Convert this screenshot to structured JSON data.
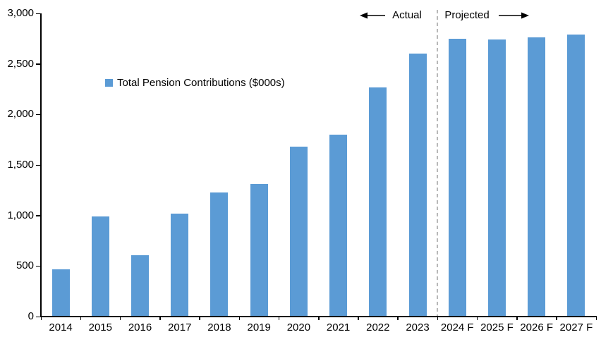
{
  "chart_data": {
    "type": "bar",
    "title": "",
    "legend_label": "Total Pension Contributions ($000s)",
    "categories": [
      "2014",
      "2015",
      "2016",
      "2017",
      "2018",
      "2019",
      "2020",
      "2021",
      "2022",
      "2023",
      "2024 F",
      "2025 F",
      "2026 F",
      "2027 F"
    ],
    "values": [
      470,
      990,
      610,
      1020,
      1230,
      1310,
      1680,
      1800,
      2265,
      2600,
      2750,
      2740,
      2760,
      2790
    ],
    "ylim": [
      0,
      3000
    ],
    "ytick_interval": 500,
    "ytick_labels": [
      "0",
      "500",
      "1,000",
      "1,500",
      "2,000",
      "2,500",
      "3,000"
    ],
    "grid": "off",
    "legend_position": "upper-left-inside",
    "bar_color": "#5B9BD5",
    "divider_after_category": "2023",
    "divider_color": "#A6A6A6",
    "annotations": {
      "actual_label": "Actual",
      "projected_label": "Projected"
    }
  }
}
